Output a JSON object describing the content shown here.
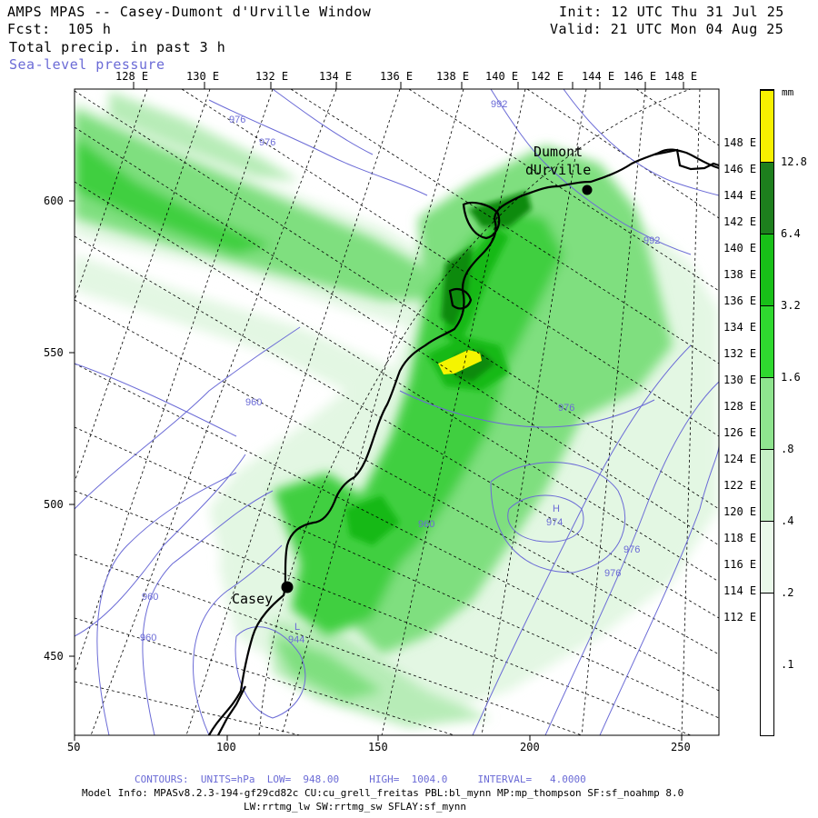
{
  "header": {
    "title": "AMPS MPAS -- Casey-Dumont d'Urville Window",
    "init": "Init: 12 UTC Thu 31 Jul 25",
    "fcst": "Fcst:  105 h",
    "valid": "Valid: 21 UTC Mon 04 Aug 25",
    "field": "Total precip. in past 3 h",
    "overlay": "Sea-level pressure"
  },
  "map": {
    "top_longitudes": [
      "128 E",
      "130 E",
      "132 E",
      "134 E",
      "136 E",
      "138 E",
      "140 E",
      "142 E",
      "144 E",
      "146 E",
      "148 E"
    ],
    "right_longitudes": [
      "148 E",
      "146 E",
      "144 E",
      "142 E",
      "140 E",
      "138 E",
      "136 E",
      "134 E",
      "132 E",
      "130 E",
      "128 E",
      "126 E",
      "124 E",
      "122 E",
      "120 E",
      "118 E",
      "116 E",
      "114 E",
      "112 E"
    ],
    "x_ticks": [
      "50",
      "100",
      "150",
      "200",
      "250"
    ],
    "y_ticks": [
      "600",
      "550",
      "500",
      "450"
    ],
    "stations": [
      {
        "name_line1": "Dumont",
        "name_line2": "dUrville"
      },
      {
        "name_line1": "Casey",
        "name_line2": ""
      }
    ],
    "pressure_labels": [
      "976",
      "976",
      "992",
      "992",
      "976",
      "960",
      "960",
      "960",
      "960",
      "976",
      "976",
      "944"
    ],
    "highs_lows": [
      {
        "symbol": "H",
        "value": "974"
      },
      {
        "symbol": "L",
        "value": "944"
      }
    ],
    "colors": {
      "land_coast": "#000000",
      "contour": "#6b6bd6",
      "precip_levels": [
        "#ffffff",
        "#e3f7e3",
        "#b7ecb7",
        "#7fdf7f",
        "#3fcf3f",
        "#17b917",
        "#0e8a0e",
        "#f5f500"
      ]
    }
  },
  "colorbar": {
    "unit": "mm",
    "labels": [
      "12.8",
      "6.4",
      "3.2",
      "1.6",
      ".8",
      ".4",
      ".2",
      ".1"
    ],
    "colors": [
      "#f7f000",
      "#1d7f1d",
      "#18c018",
      "#2fd92f",
      "#8fe48f",
      "#c7f0c7",
      "#eaf9ea",
      "#ffffff"
    ]
  },
  "footer": {
    "contours": "CONTOURS:  UNITS=hPa  LOW=  948.00     HIGH=  1004.0     INTERVAL=   4.0000",
    "model_info": "Model Info: MPASv8.2.3-194-gf29cd82c CU:cu_grell_freitas PBL:bl_mynn MP:mp_thompson SF:sf_noahmp 8.0",
    "model_info2": "LW:rrtmg_lw SW:rrtmg_sw SFLAY:sf_mynn"
  }
}
